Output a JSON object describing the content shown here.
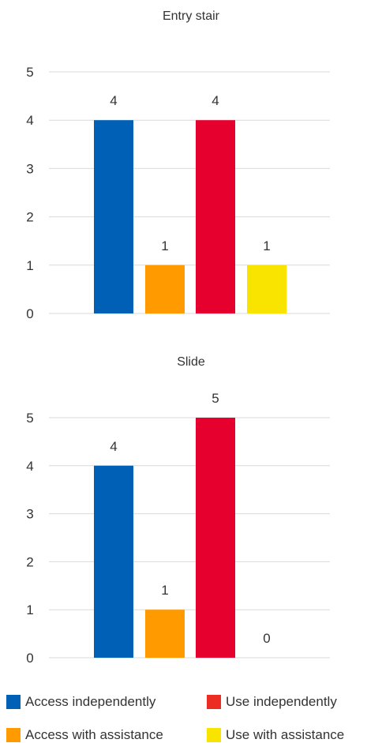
{
  "chart_data": [
    {
      "type": "bar",
      "title": "Entry stair",
      "categories": [
        "Access independently",
        "Access with assistance",
        "Use independently",
        "Use with assistance"
      ],
      "values": [
        4,
        1,
        4,
        1
      ],
      "ylim": [
        0,
        5
      ],
      "yticks": [
        "0",
        "1",
        "2",
        "3",
        "4",
        "5"
      ],
      "grid": true
    },
    {
      "type": "bar",
      "title": "Slide",
      "categories": [
        "Access independently",
        "Access with assistance",
        "Use independently",
        "Use with assistance"
      ],
      "values": [
        4,
        1,
        5,
        0
      ],
      "ylim": [
        0,
        5
      ],
      "yticks": [
        "0",
        "1",
        "2",
        "3",
        "4",
        "5"
      ],
      "grid": true
    }
  ],
  "colors": [
    "#0060b6",
    "#ff9a00",
    "#e6002d",
    "#f9e400"
  ],
  "legend": {
    "placement": "bottom",
    "items": [
      {
        "label": "Access independently",
        "color": "#0060b6"
      },
      {
        "label": "Use independently",
        "color": "#ec2d24"
      },
      {
        "label": "Access with assistance",
        "color": "#ff9a00"
      },
      {
        "label": "Use with assistance",
        "color": "#f9e400"
      }
    ]
  }
}
